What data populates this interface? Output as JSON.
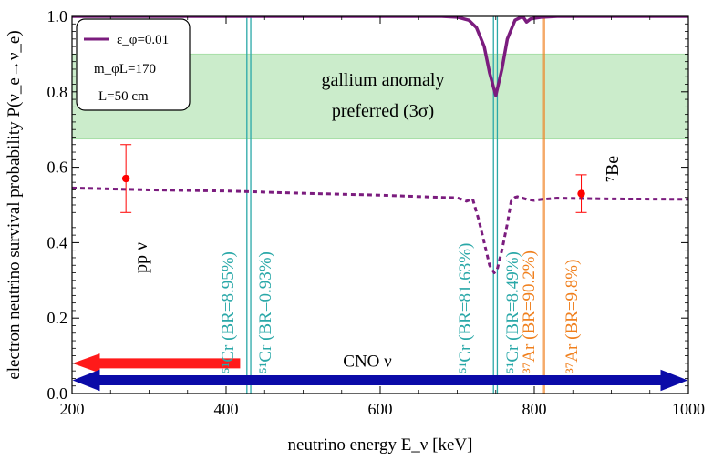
{
  "chart_data": {
    "type": "line",
    "xlabel": "neutrino energy E_ν [keV]",
    "ylabel": "electron neutrino survival probability P(ν_e→ν_e)",
    "xlim": [
      200,
      1000
    ],
    "ylim": [
      0.0,
      1.0
    ],
    "xticks": [
      200,
      400,
      600,
      800,
      1000
    ],
    "yticks": [
      0.0,
      0.2,
      0.4,
      0.6,
      0.8,
      1.0
    ],
    "xtick_labels": [
      "200",
      "400",
      "600",
      "800",
      "1000"
    ],
    "ytick_labels": [
      "0.0",
      "0.2",
      "0.4",
      "0.6",
      "0.8",
      "1.0"
    ],
    "legend": {
      "placement": "top-left",
      "entries": [
        {
          "label": "ε_φ=0.01",
          "color": "#7b1c7e"
        }
      ],
      "parameters": [
        "m_φL=170",
        "L=50 cm"
      ]
    },
    "band": {
      "label_line1": "gallium anomaly",
      "label_line2": "preferred (3σ)",
      "ymin": 0.675,
      "ymax": 0.9,
      "color": "#7ed07e"
    },
    "series": [
      {
        "style": "solid",
        "color": "#7b1c7e",
        "x": [
          200,
          400,
          600,
          680,
          700,
          715,
          725,
          735,
          742,
          750,
          758,
          765,
          775,
          785,
          790,
          795,
          800,
          810,
          830,
          860,
          900,
          1000
        ],
        "y": [
          1.0,
          1.0,
          1.0,
          1.0,
          0.998,
          0.99,
          0.97,
          0.92,
          0.85,
          0.79,
          0.86,
          0.94,
          0.99,
          1.0,
          0.985,
          0.993,
          0.995,
          0.998,
          1.0,
          1.0,
          1.0,
          1.0
        ]
      },
      {
        "style": "dotted",
        "color": "#7b1c7e",
        "x": [
          200,
          300,
          400,
          500,
          600,
          680,
          700,
          712,
          720,
          728,
          735,
          742,
          748,
          752,
          758,
          765,
          770,
          775,
          778,
          790,
          800,
          810,
          830,
          900,
          1000
        ],
        "y": [
          0.545,
          0.54,
          0.537,
          0.531,
          0.526,
          0.52,
          0.519,
          0.51,
          0.516,
          0.46,
          0.4,
          0.34,
          0.32,
          0.33,
          0.38,
          0.45,
          0.51,
          0.52,
          0.522,
          0.515,
          0.512,
          0.515,
          0.518,
          0.516,
          0.515
        ]
      }
    ],
    "data_points": [
      {
        "name": "pp ν",
        "label": "pp ν",
        "x": 270,
        "y": 0.57,
        "yerr_low": 0.48,
        "yerr_high": 0.66,
        "color": "#ff0000"
      },
      {
        "name": "7Be",
        "label": "⁷Be",
        "x": 861,
        "y": 0.53,
        "yerr_low": 0.48,
        "yerr_high": 0.58,
        "color": "#ff0000"
      }
    ],
    "lines": [
      {
        "x": 427,
        "label": "⁵¹Cr (BR=8.95%)",
        "color": "#2aa8a8"
      },
      {
        "x": 432,
        "label": "⁵¹Cr (BR=0.93%)",
        "color": "#2aa8a8"
      },
      {
        "x": 747,
        "label": "⁵¹Cr (BR=81.63%)",
        "color": "#2aa8a8"
      },
      {
        "x": 752,
        "label": "⁵¹Cr (BR=8.49%)",
        "color": "#2aa8a8"
      },
      {
        "x": 811,
        "label": "³⁷Ar (BR=90.2%)",
        "color": "#f0801e"
      },
      {
        "x": 813,
        "label": "³⁷Ar (BR=9.8%)",
        "color": "#f0801e"
      }
    ],
    "arrows": [
      {
        "label": "",
        "xmin": 200,
        "xmax": 420,
        "y": 0.08,
        "direction": "left",
        "color": "#ff1a1a"
      },
      {
        "label": "CNO ν",
        "xmin": 200,
        "xmax": 1000,
        "y": 0.035,
        "direction": "both",
        "color": "#0b0ba8"
      }
    ]
  }
}
